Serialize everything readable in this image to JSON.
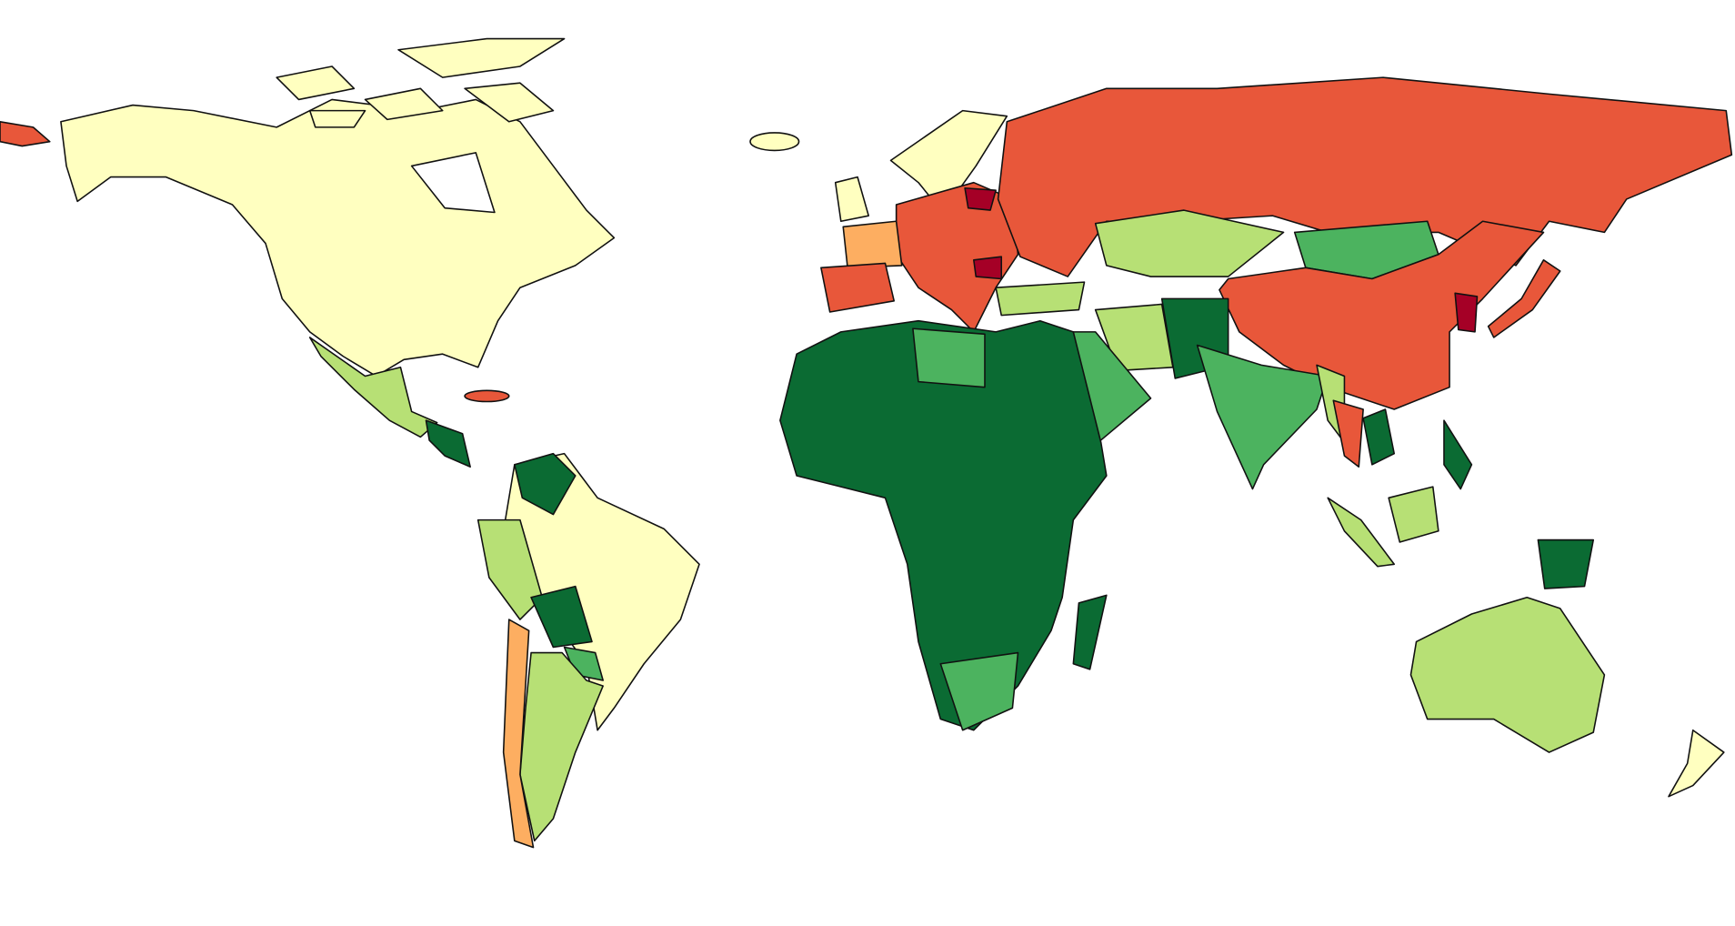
{
  "map": {
    "palette": [
      "#ffffc0",
      "#b7e075",
      "#4cb35f",
      "#0b6b33",
      "#fdae61",
      "#e8573a",
      "#a50026"
    ],
    "border_color": "#111111",
    "background": "#ffffff"
  }
}
